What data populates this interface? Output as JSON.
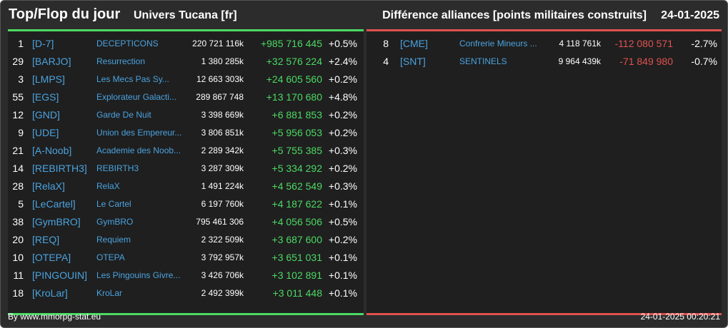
{
  "header": {
    "title": "Top/Flop du jour",
    "universe": "Univers Tucana [fr]",
    "subtitle": "Différence alliances [points militaires construits]",
    "date": "24-01-2025"
  },
  "top": [
    {
      "rank": "1",
      "tag": "[D-7]",
      "name": "DECEPTICONS",
      "points": "220 721 116k",
      "diff": "+985 716 445",
      "pct": "+0.5%"
    },
    {
      "rank": "29",
      "tag": "[BARJO]",
      "name": "Resurrection",
      "points": "1 380 285k",
      "diff": "+32 576 224",
      "pct": "+2.4%"
    },
    {
      "rank": "3",
      "tag": "[LMPS]",
      "name": "Les Mecs Pas Sy...",
      "points": "12 663 303k",
      "diff": "+24 605 560",
      "pct": "+0.2%"
    },
    {
      "rank": "55",
      "tag": "[EGS]",
      "name": "Explorateur Galacti...",
      "points": "289 867 748",
      "diff": "+13 170 680",
      "pct": "+4.8%"
    },
    {
      "rank": "12",
      "tag": "[GND]",
      "name": "Garde De Nuit",
      "points": "3 398 669k",
      "diff": "+6 881 853",
      "pct": "+0.2%"
    },
    {
      "rank": "9",
      "tag": "[UDE]",
      "name": "Union des Empereur...",
      "points": "3 806 851k",
      "diff": "+5 956 053",
      "pct": "+0.2%"
    },
    {
      "rank": "21",
      "tag": "[A-Noob]",
      "name": "Academie des Noob...",
      "points": "2 289 342k",
      "diff": "+5 755 385",
      "pct": "+0.3%"
    },
    {
      "rank": "14",
      "tag": "[REBIRTH3]",
      "name": "REBIRTH3",
      "points": "3 287 309k",
      "diff": "+5 334 292",
      "pct": "+0.2%"
    },
    {
      "rank": "28",
      "tag": "[RelaX]",
      "name": "RelaX",
      "points": "1 491 224k",
      "diff": "+4 562 549",
      "pct": "+0.3%"
    },
    {
      "rank": "5",
      "tag": "[LeCartel]",
      "name": "Le Cartel",
      "points": "6 197 760k",
      "diff": "+4 187 622",
      "pct": "+0.1%"
    },
    {
      "rank": "38",
      "tag": "[GymBRO]",
      "name": "GymBRO",
      "points": "795 461 306",
      "diff": "+4 056 506",
      "pct": "+0.5%"
    },
    {
      "rank": "20",
      "tag": "[REQ]",
      "name": "Requiem",
      "points": "2 322 509k",
      "diff": "+3 687 600",
      "pct": "+0.2%"
    },
    {
      "rank": "10",
      "tag": "[OTEPA]",
      "name": "OTEPA",
      "points": "3 792 957k",
      "diff": "+3 651 031",
      "pct": "+0.1%"
    },
    {
      "rank": "11",
      "tag": "[PINGOUIN]",
      "name": "Les Pingouins Givre...",
      "points": "3 426 706k",
      "diff": "+3 102 891",
      "pct": "+0.1%"
    },
    {
      "rank": "18",
      "tag": "[KroLar]",
      "name": "KroLar",
      "points": "2 492 399k",
      "diff": "+3 011 448",
      "pct": "+0.1%"
    }
  ],
  "flop": [
    {
      "rank": "8",
      "tag": "[CME]",
      "name": "Confrerie Mineurs ...",
      "points": "4 118 761k",
      "diff": "-112 080 571",
      "pct": "-2.7%"
    },
    {
      "rank": "4",
      "tag": "[SNT]",
      "name": "SENTINELS",
      "points": "9 964 439k",
      "diff": "-71 849 980",
      "pct": "-0.7%"
    }
  ],
  "footer": {
    "credit": "By www.mmorpg-stat.eu",
    "timestamp": "24-01-2025 00:20:21"
  },
  "colors": {
    "positive": "#4cd964",
    "negative": "#e0514f",
    "link": "#4aa3df"
  }
}
